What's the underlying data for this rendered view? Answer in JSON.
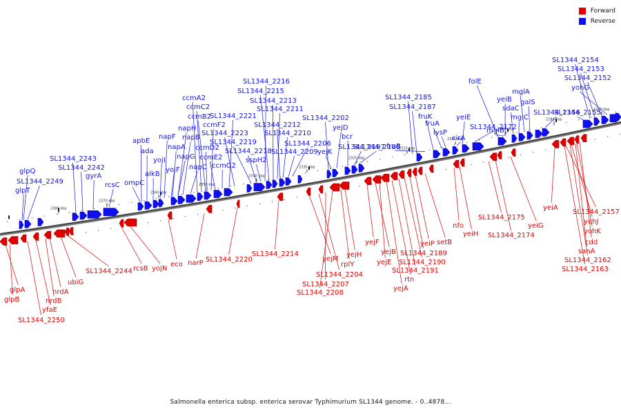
{
  "legend": {
    "forward_label": "Forward",
    "reverse_label": "Reverse",
    "forward_color": "#e00000",
    "reverse_color": "#1010ee"
  },
  "caption": "Salmonella enterica subsp. enterica serovar Typhimurium SL1344 genome. - 0..4878...",
  "scale_labels": [
    "2380 kbp",
    "2370 kbp",
    "2360 kbp",
    "2350 kbp",
    "2340 kbp",
    "2330 kbp",
    "2320 kbp",
    "2310 kbp",
    "2300 kbp",
    "2290 kbp",
    "2280 kbp",
    "2270 kbp"
  ],
  "reverse_genes": [
    "glpQ",
    "SL1344_2249",
    "glpT",
    "SL1344_2243",
    "SL1344_2242",
    "gyrA",
    "rcsC",
    "ompC",
    "apbE",
    "ada",
    "alkB",
    "yojI",
    "napF",
    "yojF",
    "napA",
    "napH",
    "napB",
    "napG",
    "ccmA2",
    "ccmC2",
    "ccmB2",
    "ccmF2",
    "napC",
    "ccmD2",
    "ccmE2",
    "ccmG2",
    "SL1344_2221",
    "SL1344_2223",
    "SL1344_2219",
    "SL1344_2218",
    "sspH2",
    "SL1344_2216",
    "SL1344_2215",
    "SL1344_2213",
    "SL1344_2211",
    "SL1344_2212",
    "SL1344_2210",
    "SL1344_2209",
    "SL1344_2206",
    "SL1344_2202",
    "yejD",
    "yejK",
    "bcr",
    "SL1344_2197",
    "SL1344_2186",
    "SL1344_2185",
    "SL1344_2187",
    "fruB",
    "fruK",
    "fruA",
    "lysP",
    "yeiE",
    "cirA",
    "SL1344_2172",
    "folE",
    "yeiB",
    "sdaC",
    "mglB",
    "mglA",
    "galS",
    "mglC",
    "SL1344_2156",
    "SL1344_2155",
    "SL1344_2154",
    "SL1344_2153",
    "SL1344_2152",
    "yohG"
  ],
  "forward_genes": [
    "glpA",
    "glpB",
    "SL1344_2250",
    "yfaE",
    "nrdB",
    "nrdA",
    "ubiG",
    "SL1344_2244",
    "rcsB",
    "yojN",
    "eco",
    "narP",
    "SL1344_2220",
    "SL1344_2214",
    "yejM",
    "SL1344_2204",
    "SL1344_2207",
    "SL1344_2208",
    "rplY",
    "yejH",
    "yejF",
    "yejB",
    "yejE",
    "yejA",
    "rtn",
    "SL1344_2191",
    "SL1344_2190",
    "SL1344_2189",
    "yeiP",
    "setB",
    "nfo",
    "yeiH",
    "SL1344_2175",
    "SL1344_2174",
    "yeiG",
    "yeiA",
    "SL1344_2157",
    "yohJ",
    "yohK",
    "cdd",
    "sanA",
    "SL1344_2162",
    "SL1344_2163"
  ]
}
